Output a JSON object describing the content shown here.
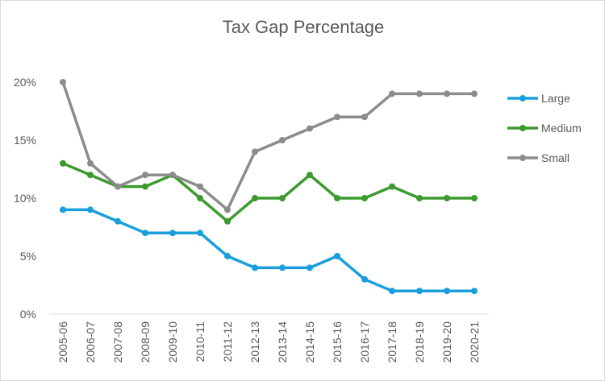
{
  "chart_data": {
    "type": "line",
    "title": "Tax Gap Percentage",
    "xlabel": "",
    "ylabel": "",
    "categories": [
      "2005-06",
      "2006-07",
      "2007-08",
      "2008-09",
      "2009-10",
      "2010-11",
      "2011-12",
      "2012-13",
      "2013-14",
      "2014-15",
      "2015-16",
      "2016-17",
      "2017-18",
      "2018-19",
      "2019-20",
      "2020-21"
    ],
    "ylim": [
      0,
      20
    ],
    "yticks": [
      0,
      5,
      10,
      15,
      20
    ],
    "ytick_labels": [
      "0%",
      "5%",
      "10%",
      "15%",
      "20%"
    ],
    "grid": false,
    "legend_position": "right",
    "series": [
      {
        "name": "Large",
        "color": "#1a9fdc",
        "values": [
          9,
          9,
          8,
          7,
          7,
          7,
          5,
          4,
          4,
          4,
          5,
          3,
          2,
          2,
          2,
          2
        ]
      },
      {
        "name": "Medium",
        "color": "#3c9a2e",
        "values": [
          13,
          12,
          11,
          11,
          12,
          10,
          8,
          10,
          10,
          12,
          10,
          10,
          11,
          10,
          10,
          10
        ]
      },
      {
        "name": "Small",
        "color": "#8c8c8c",
        "values": [
          20,
          13,
          11,
          12,
          12,
          11,
          9,
          14,
          15,
          16,
          17,
          17,
          19,
          19,
          19,
          19
        ]
      }
    ]
  }
}
